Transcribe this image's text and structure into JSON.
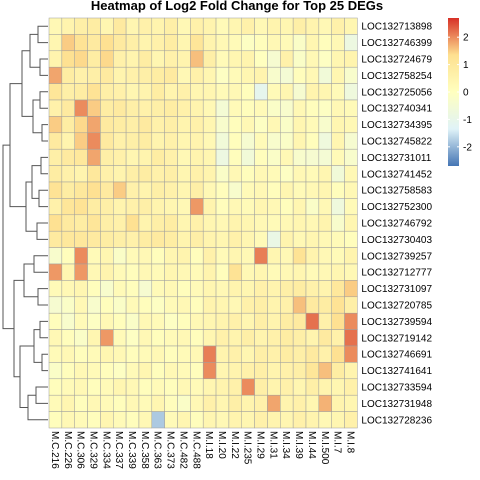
{
  "chart_data": {
    "type": "heatmap",
    "title": "Heatmap of Log2 Fold Change for Top 25 DEGs",
    "rows": [
      "LOC132713898",
      "LOC132746399",
      "LOC132724679",
      "LOC132758254",
      "LOC132725056",
      "LOC132740341",
      "LOC132734395",
      "LOC132745822",
      "LOC132731011",
      "LOC132741452",
      "LOC132758583",
      "LOC132752300",
      "LOC132746792",
      "LOC132730403",
      "LOC132739257",
      "LOC132712777",
      "LOC132731097",
      "LOC132720785",
      "LOC132739594",
      "LOC132719142",
      "LOC132746691",
      "LOC132741641",
      "LOC132733594",
      "LOC132731948",
      "LOC132728236"
    ],
    "columns": [
      "M.C.216",
      "M.C.226",
      "M.C.306",
      "M.C.329",
      "M.C.334",
      "M.C.337",
      "M.C.339",
      "M.C.358",
      "M.C.363",
      "M.C.373",
      "M.C.482",
      "M.C.488",
      "M.I.18",
      "M.I.20",
      "M.I.22",
      "M.I.235",
      "M.I.29",
      "M.I.31",
      "M.I.34",
      "M.I.39",
      "M.I.44",
      "M.I.500",
      "M.I.7",
      "M.I.8"
    ],
    "values": [
      [
        0.3,
        0.5,
        0.7,
        0.8,
        0.4,
        0.9,
        0.4,
        0.6,
        0.5,
        0.7,
        0.3,
        0.6,
        0.5,
        0.2,
        0.4,
        0.6,
        0.3,
        0.5,
        0.4,
        0.7,
        0.5,
        0.3,
        0.6,
        0.4
      ],
      [
        0.4,
        1.5,
        1.2,
        0.9,
        1.3,
        0.9,
        0.7,
        0.5,
        0.6,
        0.8,
        0.4,
        1.1,
        0.5,
        0.3,
        0.2,
        -0.1,
        0.1,
        0.3,
        0.2,
        -0.2,
        0.4,
        0.1,
        0.3,
        -0.8
      ],
      [
        0.5,
        1.3,
        1.4,
        0.8,
        1.4,
        0.6,
        0.5,
        0.8,
        0.4,
        0.6,
        0.5,
        1.6,
        0.7,
        0.2,
        0.4,
        0.5,
        0.0,
        -0.4,
        0.6,
        -0.2,
        0.3,
        -0.1,
        0.4,
        0.5
      ],
      [
        1.8,
        0.8,
        0.6,
        0.7,
        0.9,
        0.5,
        0.6,
        0.7,
        0.8,
        0.9,
        0.3,
        0.6,
        0.4,
        -0.1,
        0.2,
        0.4,
        0.5,
        -0.3,
        -0.5,
        0.1,
        0.3,
        -0.6,
        0.4,
        -0.3
      ],
      [
        1.1,
        0.7,
        0.8,
        1.2,
        0.7,
        0.6,
        0.4,
        0.5,
        0.8,
        0.5,
        0.6,
        0.4,
        0.4,
        0.2,
        0.3,
        0.1,
        -1.1,
        0.2,
        0.4,
        -0.4,
        0.5,
        0.4,
        0.2,
        -0.7
      ],
      [
        0.6,
        0.9,
        2.0,
        1.5,
        0.8,
        0.9,
        0.7,
        0.6,
        0.7,
        0.8,
        0.6,
        0.5,
        0.3,
        -0.5,
        0.2,
        0.1,
        0.2,
        -0.2,
        -0.3,
        0.3,
        0.1,
        -0.1,
        0.3,
        0.2
      ],
      [
        1.5,
        0.8,
        1.4,
        1.8,
        0.9,
        0.8,
        0.7,
        0.9,
        0.6,
        0.7,
        0.5,
        0.6,
        0.4,
        -0.3,
        0.1,
        0.3,
        -0.1,
        0.3,
        -0.2,
        0.4,
        0.2,
        -0.3,
        0.4,
        0.3
      ],
      [
        0.9,
        0.5,
        1.5,
        2.0,
        0.9,
        0.6,
        0.7,
        0.8,
        0.5,
        0.6,
        0.4,
        0.5,
        0.3,
        -0.6,
        0.1,
        -0.4,
        0.2,
        -0.3,
        -0.2,
        0.4,
        0.1,
        -0.7,
        0.4,
        -0.4
      ],
      [
        0.7,
        0.9,
        1.0,
        1.8,
        0.7,
        0.6,
        0.4,
        0.5,
        0.8,
        0.6,
        0.3,
        0.5,
        0.4,
        -0.8,
        0.1,
        -0.6,
        0.1,
        -0.2,
        0.3,
        -0.3,
        -0.4,
        -0.5,
        0.2,
        -0.3
      ],
      [
        0.8,
        0.6,
        0.5,
        1.0,
        0.6,
        0.5,
        0.7,
        0.8,
        0.6,
        0.7,
        0.4,
        0.6,
        0.5,
        -0.2,
        0.3,
        0.1,
        0.3,
        0.2,
        -0.1,
        0.3,
        0.2,
        0.4,
        -0.6,
        0.3
      ],
      [
        1.2,
        0.8,
        1.0,
        1.3,
        0.9,
        1.5,
        0.6,
        0.5,
        0.7,
        0.6,
        0.4,
        0.7,
        0.3,
        0.1,
        -0.3,
        0.2,
        0.3,
        0.1,
        0.4,
        0.2,
        0.3,
        0.4,
        0.1,
        0.3
      ],
      [
        0.6,
        1.1,
        1.2,
        0.8,
        0.7,
        0.5,
        0.6,
        0.7,
        0.5,
        0.4,
        0.3,
        1.9,
        0.5,
        0.1,
        0.3,
        0.2,
        0.4,
        0.3,
        0.1,
        0.4,
        -0.2,
        0.3,
        -0.7,
        0.2
      ],
      [
        1.3,
        0.9,
        0.8,
        1.1,
        0.7,
        0.6,
        1.3,
        0.5,
        0.7,
        0.8,
        0.4,
        0.6,
        0.4,
        0.3,
        0.5,
        0.4,
        0.3,
        0.2,
        0.3,
        0.4,
        0.3,
        0.5,
        -0.3,
        0.4
      ],
      [
        0.9,
        1.0,
        1.0,
        0.9,
        0.8,
        0.7,
        0.6,
        0.8,
        0.9,
        0.8,
        0.5,
        0.7,
        0.5,
        0.4,
        0.6,
        0.4,
        0.2,
        -0.9,
        0.5,
        0.3,
        0.4,
        0.3,
        0.2,
        0.1
      ],
      [
        -0.3,
        0.1,
        2.0,
        0.2,
        0.4,
        -0.2,
        0.2,
        0.3,
        0.1,
        0.4,
        0.5,
        0.1,
        0.6,
        0.2,
        0.4,
        0.3,
        2.1,
        0.4,
        0.3,
        1.2,
        0.5,
        0.3,
        0.2,
        0.5
      ],
      [
        1.9,
        0.4,
        1.9,
        0.3,
        0.5,
        0.2,
        0.1,
        0.3,
        0.2,
        0.4,
        0.3,
        0.2,
        0.5,
        0.1,
        1.2,
        0.3,
        0.4,
        0.2,
        0.3,
        0.4,
        0.2,
        0.3,
        0.4,
        0.3
      ],
      [
        0.2,
        0.3,
        0.4,
        0.1,
        -0.3,
        0.2,
        0.1,
        -0.4,
        0.2,
        0.3,
        0.1,
        0.2,
        0.4,
        0.3,
        0.5,
        0.4,
        0.6,
        0.5,
        0.7,
        0.8,
        0.6,
        0.5,
        1.0,
        1.5
      ],
      [
        -0.4,
        -0.2,
        0.3,
        -0.3,
        0.1,
        -0.2,
        0.2,
        0.1,
        -0.1,
        0.2,
        0.3,
        0.1,
        0.5,
        0.4,
        0.3,
        0.6,
        0.7,
        0.5,
        0.6,
        1.6,
        0.9,
        0.8,
        1.2,
        0.7
      ],
      [
        0.1,
        -0.3,
        0.2,
        -0.1,
        0.3,
        0.1,
        -0.2,
        0.3,
        0.2,
        -0.1,
        0.1,
        0.3,
        0.4,
        0.5,
        0.6,
        0.4,
        0.7,
        0.5,
        0.8,
        0.9,
        2.2,
        0.6,
        1.3,
        2.0
      ],
      [
        0.3,
        0.1,
        -0.2,
        0.4,
        1.9,
        0.2,
        -0.1,
        0.3,
        0.1,
        0.2,
        0.3,
        0.1,
        0.4,
        0.6,
        0.5,
        0.7,
        0.5,
        0.6,
        0.8,
        0.7,
        0.5,
        0.9,
        0.6,
        2.2
      ],
      [
        0.2,
        0.3,
        0.1,
        0.2,
        0.4,
        0.3,
        0.1,
        0.2,
        0.3,
        0.1,
        0.2,
        0.3,
        2.1,
        0.5,
        0.6,
        0.4,
        0.7,
        0.6,
        0.8,
        0.7,
        0.9,
        0.6,
        1.3,
        2.0
      ],
      [
        -0.2,
        0.1,
        0.3,
        0.2,
        0.1,
        -0.1,
        0.2,
        0.4,
        0.1,
        0.3,
        0.2,
        0.1,
        2.0,
        0.4,
        0.5,
        0.6,
        0.7,
        0.5,
        0.6,
        0.7,
        1.1,
        1.6,
        0.8,
        0.5
      ],
      [
        0.1,
        0.2,
        0.3,
        0.1,
        0.2,
        0.4,
        0.3,
        0.1,
        0.2,
        0.1,
        0.3,
        0.2,
        0.4,
        0.5,
        0.6,
        2.0,
        0.7,
        0.5,
        0.6,
        0.4,
        0.7,
        0.5,
        0.4,
        0.6
      ],
      [
        0.2,
        0.4,
        0.1,
        0.3,
        0.2,
        0.1,
        0.3,
        0.2,
        0.4,
        0.1,
        -0.2,
        0.3,
        0.6,
        0.4,
        0.7,
        0.5,
        0.6,
        1.8,
        0.5,
        0.6,
        0.4,
        1.7,
        0.5,
        0.4
      ],
      [
        0.1,
        0.3,
        0.2,
        0.1,
        0.4,
        0.2,
        0.1,
        0.3,
        -1.8,
        0.2,
        0.4,
        0.1,
        0.4,
        0.3,
        0.5,
        0.4,
        0.6,
        0.5,
        0.4,
        0.6,
        0.5,
        0.3,
        0.4,
        0.6
      ]
    ],
    "scale_range": [
      -2.7,
      2.7
    ],
    "legend_ticks": [
      2,
      1,
      0,
      -1,
      -2
    ],
    "colors": [
      "#4575b4",
      "#e0f3f8",
      "#ffffbf",
      "#fee090",
      "#d73027"
    ],
    "grid_color": "#9e9e9e",
    "legend_placement": "right",
    "row_dendrogram": true,
    "column_dendrogram": false
  }
}
